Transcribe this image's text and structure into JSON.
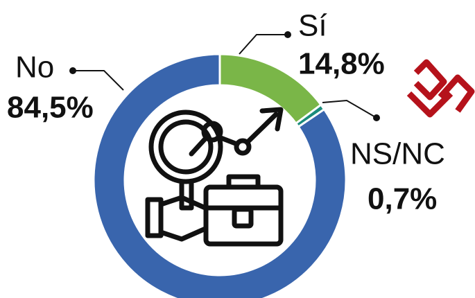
{
  "chart_data": {
    "type": "donut",
    "categories": [
      "Sí",
      "NS/NC",
      "No"
    ],
    "values": [
      14.8,
      0.7,
      84.5
    ],
    "value_labels": [
      "14,8%",
      "0,7%",
      "84,5%"
    ],
    "colors": [
      "#7ab648",
      "#1b8c7c",
      "#3965ad"
    ]
  }
}
